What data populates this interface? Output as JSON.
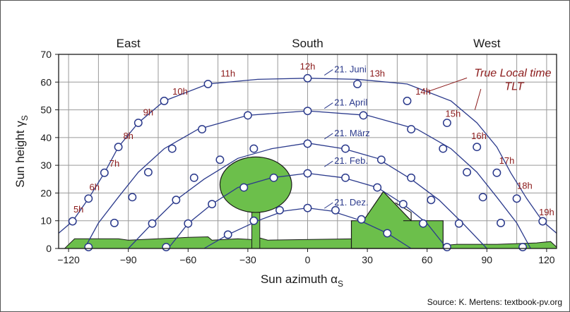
{
  "colors": {
    "curve": "#2b3a8c",
    "point_fill": "#ffffff",
    "hour_label": "#8b1a1a",
    "date_label": "#2b3a8c",
    "obstacle_fill": "#6cbf4b",
    "obstacle_stroke": "#1a1a1a",
    "grid": "#9a9a9a"
  },
  "source": "Source: K. Mertens: textbook-pv.org",
  "chart_data": {
    "type": "line",
    "title": "",
    "xlabel": "Sun azimuth α",
    "xlabel_sub": "S",
    "ylabel": "Sun height γ",
    "ylabel_sub": "S",
    "xlim": [
      -125,
      125
    ],
    "ylim": [
      0,
      70
    ],
    "xticks": [
      -120,
      -90,
      -60,
      -30,
      0,
      30,
      60,
      90,
      120
    ],
    "yticks": [
      0,
      10,
      20,
      30,
      40,
      50,
      60,
      70
    ],
    "grid": true,
    "directions": [
      {
        "label": "East",
        "x": -90
      },
      {
        "label": "South",
        "x": 0
      },
      {
        "label": "West",
        "x": 90
      }
    ],
    "annotation": {
      "line1": "True Local time",
      "line2": "TLT"
    },
    "series": [
      {
        "name": "21. Juni",
        "label_at": [
          7,
          64
        ],
        "curve": [
          [
            -125,
            5.5
          ],
          [
            -118,
            9.8
          ],
          [
            -110,
            18.0
          ],
          [
            -102,
            27.3
          ],
          [
            -95,
            36.6
          ],
          [
            -85,
            45.3
          ],
          [
            -72,
            53.2
          ],
          [
            -50,
            59.3
          ],
          [
            -25,
            61.0
          ],
          [
            0,
            61.4
          ],
          [
            25,
            61.0
          ],
          [
            50,
            59.3
          ],
          [
            72,
            53.2
          ],
          [
            85,
            45.3
          ],
          [
            95,
            36.6
          ],
          [
            102,
            27.3
          ],
          [
            110,
            18.0
          ],
          [
            118,
            9.8
          ],
          [
            125,
            5.5
          ]
        ],
        "points": [
          [
            -118,
            9.8
          ],
          [
            -110,
            18.0
          ],
          [
            -102,
            27.3
          ],
          [
            -95,
            36.6
          ],
          [
            -85,
            45.3
          ],
          [
            -72,
            53.2
          ],
          [
            -50,
            59.3
          ],
          [
            0,
            61.4
          ],
          [
            25,
            59.3
          ],
          [
            50,
            53.2
          ],
          [
            70,
            45.3
          ],
          [
            85,
            36.6
          ],
          [
            95,
            27.3
          ],
          [
            105,
            18.0
          ],
          [
            118,
            9.8
          ]
        ]
      },
      {
        "name": "21. April",
        "label_at": [
          7,
          52
        ],
        "curve": [
          [
            -112,
            0
          ],
          [
            -105,
            9.2
          ],
          [
            -95,
            18.5
          ],
          [
            -85,
            27.5
          ],
          [
            -72,
            36.0
          ],
          [
            -55,
            43.0
          ],
          [
            -30,
            48.0
          ],
          [
            0,
            49.6
          ],
          [
            30,
            48.0
          ],
          [
            55,
            43.0
          ],
          [
            72,
            36.0
          ],
          [
            85,
            27.5
          ],
          [
            95,
            18.5
          ],
          [
            105,
            9.2
          ],
          [
            112,
            0
          ]
        ],
        "points": [
          [
            -110,
            0.5
          ],
          [
            -97,
            9.2
          ],
          [
            -88,
            18.5
          ],
          [
            -80,
            27.5
          ],
          [
            -68,
            36.0
          ],
          [
            -53,
            43.0
          ],
          [
            -30,
            48.0
          ],
          [
            0,
            49.6
          ],
          [
            28,
            48.0
          ],
          [
            52,
            43.0
          ],
          [
            68,
            36.0
          ],
          [
            80,
            27.5
          ],
          [
            88,
            18.5
          ],
          [
            97,
            9.2
          ],
          [
            108,
            0.5
          ]
        ]
      },
      {
        "name": "21. März",
        "label_at": [
          7,
          41
        ],
        "curve": [
          [
            -90,
            0
          ],
          [
            -78,
            9.0
          ],
          [
            -66,
            17.5
          ],
          [
            -52,
            25.0
          ],
          [
            -35,
            32.5
          ],
          [
            -18,
            36.0
          ],
          [
            0,
            38.0
          ],
          [
            18,
            36.0
          ],
          [
            35,
            32.5
          ],
          [
            52,
            25.0
          ],
          [
            66,
            17.5
          ],
          [
            78,
            9.0
          ],
          [
            90,
            0
          ]
        ],
        "points": [
          [
            -71,
            0.5
          ],
          [
            -78,
            9.0
          ],
          [
            -66,
            17.5
          ],
          [
            -57,
            25.5
          ],
          [
            -44,
            32.0
          ],
          [
            -27,
            36.0
          ],
          [
            0,
            37.8
          ],
          [
            19,
            36.0
          ],
          [
            37,
            32.0
          ],
          [
            52,
            25.5
          ],
          [
            62,
            17.5
          ],
          [
            76,
            9.0
          ],
          [
            70,
            0.5
          ]
        ]
      },
      {
        "name": "21. Feb.",
        "label_at": [
          7,
          31
        ],
        "curve": [
          [
            -70,
            0
          ],
          [
            -60,
            9.0
          ],
          [
            -48,
            16.0
          ],
          [
            -35,
            22.0
          ],
          [
            -18,
            25.5
          ],
          [
            0,
            27.1
          ],
          [
            18,
            25.5
          ],
          [
            35,
            22.0
          ],
          [
            48,
            16.0
          ],
          [
            60,
            9.0
          ],
          [
            70,
            0
          ]
        ],
        "points": [
          [
            -60,
            9.0
          ],
          [
            -48,
            16.0
          ],
          [
            -32,
            22.0
          ],
          [
            -17,
            25.5
          ],
          [
            0,
            27.1
          ],
          [
            19,
            25.5
          ],
          [
            35,
            22.0
          ],
          [
            48,
            16.0
          ],
          [
            58,
            9.0
          ]
        ]
      },
      {
        "name": "21. Dez.",
        "label_at": [
          7,
          16
        ],
        "curve": [
          [
            -52,
            0
          ],
          [
            -40,
            5.0
          ],
          [
            -25,
            10.0
          ],
          [
            -12,
            13.5
          ],
          [
            0,
            14.6
          ],
          [
            12,
            13.5
          ],
          [
            25,
            10.5
          ],
          [
            40,
            5.5
          ],
          [
            52,
            0
          ]
        ],
        "points": [
          [
            -40,
            5.0
          ],
          [
            -27,
            10.0
          ],
          [
            -14,
            13.8
          ],
          [
            0,
            14.6
          ],
          [
            14,
            13.8
          ],
          [
            27,
            10.5
          ],
          [
            40,
            5.5
          ]
        ]
      }
    ],
    "hour_labels": [
      {
        "text": "5h",
        "x": -115,
        "y": 13
      },
      {
        "text": "6h",
        "x": -107,
        "y": 21
      },
      {
        "text": "7h",
        "x": -97,
        "y": 29.5
      },
      {
        "text": "8h",
        "x": -90,
        "y": 39.5
      },
      {
        "text": "9h",
        "x": -80,
        "y": 48
      },
      {
        "text": "10h",
        "x": -64,
        "y": 55.5
      },
      {
        "text": "11h",
        "x": -40,
        "y": 62
      },
      {
        "text": "12h",
        "x": 0,
        "y": 64.5
      },
      {
        "text": "13h",
        "x": 35,
        "y": 62
      },
      {
        "text": "14h",
        "x": 58,
        "y": 55.5
      },
      {
        "text": "15h",
        "x": 73,
        "y": 47.5
      },
      {
        "text": "16h",
        "x": 86,
        "y": 39.5
      },
      {
        "text": "17h",
        "x": 100,
        "y": 30.5
      },
      {
        "text": "18h",
        "x": 109,
        "y": 21.5
      },
      {
        "text": "19h",
        "x": 120,
        "y": 12
      }
    ],
    "obstacles": {
      "ground": [
        [
          -122,
          0
        ],
        [
          -117,
          3.5
        ],
        [
          -95,
          3.5
        ],
        [
          -90,
          3.0
        ],
        [
          -75,
          3.5
        ],
        [
          -60,
          4.0
        ],
        [
          -50,
          4.2
        ],
        [
          -48,
          3.0
        ],
        [
          -35,
          3.5
        ],
        [
          -28,
          3.2
        ],
        [
          -25,
          4.0
        ],
        [
          -20,
          3.0
        ],
        [
          25,
          3.5
        ],
        [
          35,
          4.0
        ],
        [
          55,
          4.0
        ],
        [
          67,
          1.0
        ],
        [
          75,
          1.5
        ],
        [
          95,
          1.5
        ],
        [
          115,
          2.0
        ],
        [
          122,
          2.5
        ],
        [
          125,
          0.5
        ],
        [
          125,
          0
        ],
        [
          -122,
          0
        ]
      ],
      "building": [
        [
          22,
          0
        ],
        [
          22,
          10
        ],
        [
          28,
          10
        ],
        [
          38,
          20.5
        ],
        [
          52,
          10
        ],
        [
          68,
          10
        ],
        [
          68,
          0
        ]
      ],
      "building_extra": [
        [
          44,
          16.5
        ],
        [
          52,
          13.0
        ],
        [
          52,
          10
        ],
        [
          48,
          10
        ]
      ],
      "tree_crown": {
        "cx": -26,
        "cy": 23,
        "rx": 18,
        "ry": 10
      },
      "tree_trunk": {
        "x": -28,
        "w": 4,
        "y0": 0,
        "y1": 14
      }
    }
  }
}
